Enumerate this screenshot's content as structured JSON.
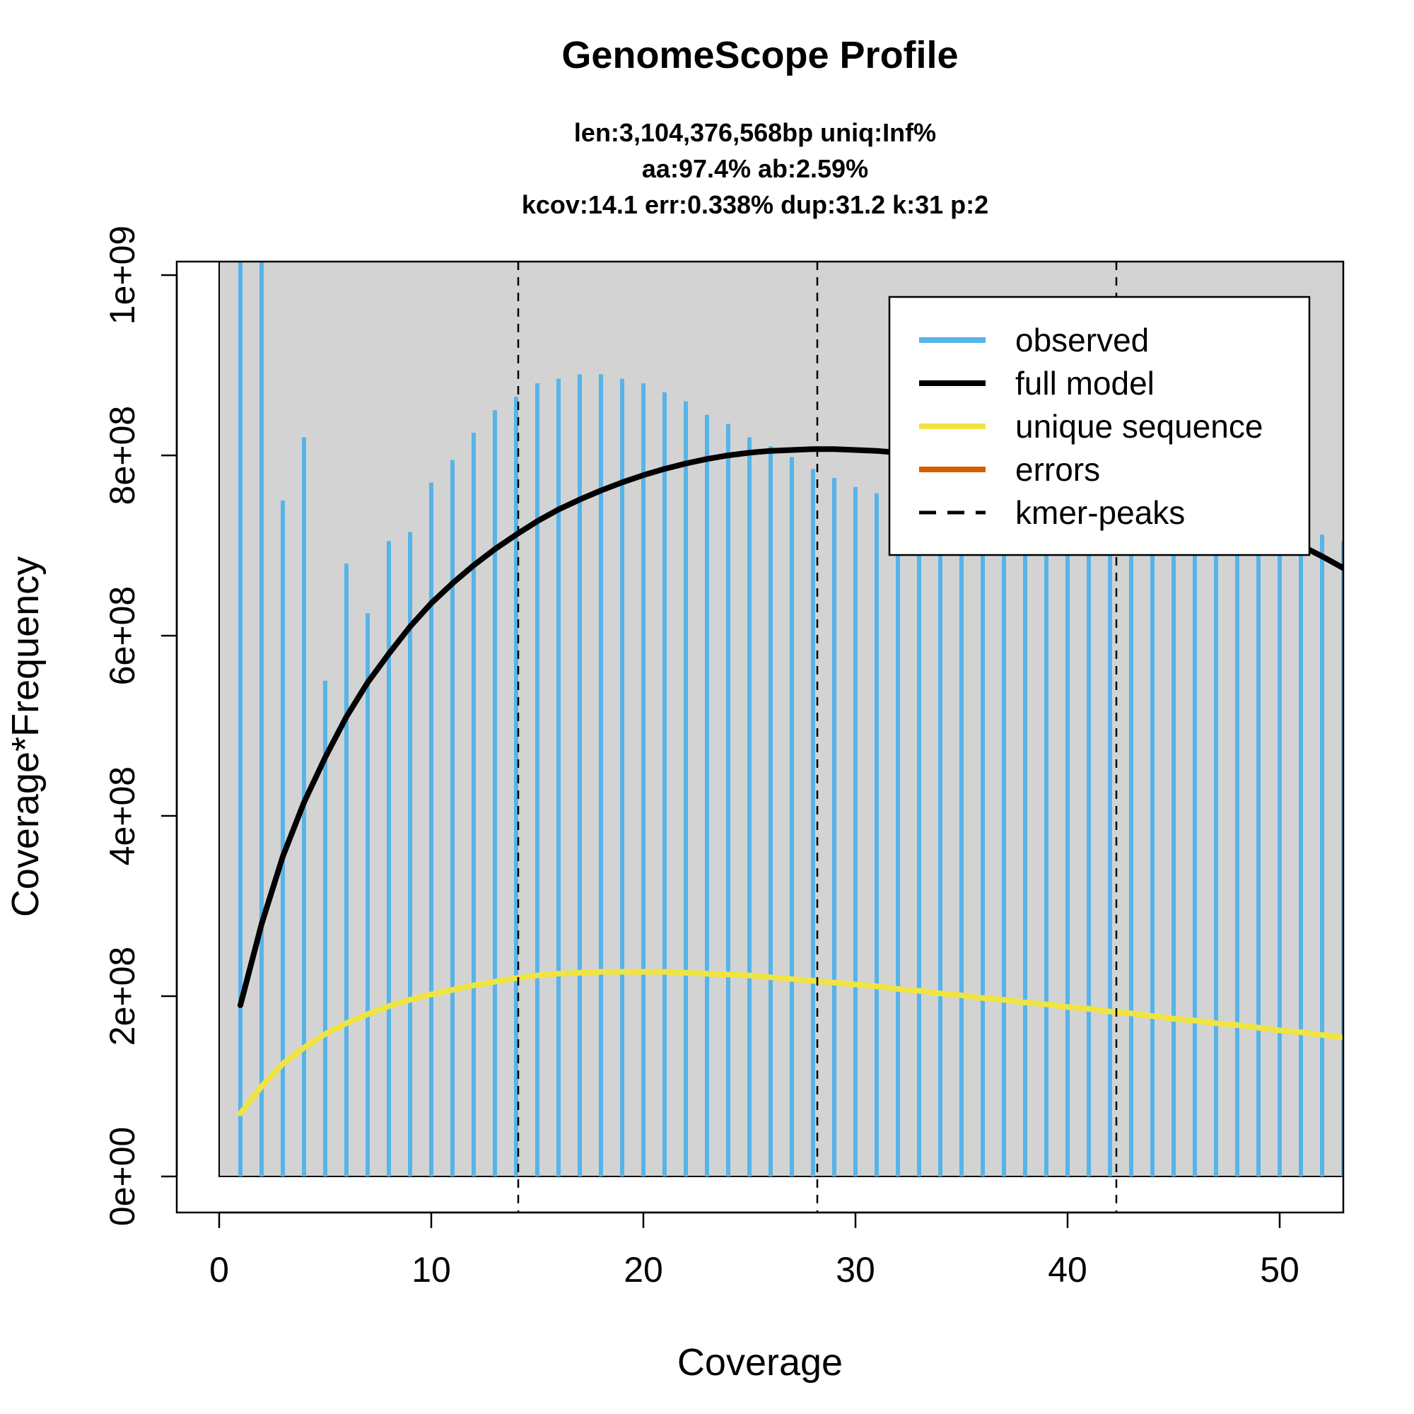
{
  "chart_data": {
    "type": "line",
    "title": "GenomeScope Profile",
    "subtitle_lines": [
      "len:3,104,376,568bp uniq:Inf%",
      "aa:97.4% ab:2.59%",
      "kcov:14.1 err:0.338%  dup:31.2  k:31 p:2"
    ],
    "xlabel": "Coverage",
    "ylabel": "Coverage*Frequency",
    "xlim": [
      -2,
      53
    ],
    "ylim": [
      -40000000,
      1015000000
    ],
    "xticks": [
      0,
      10,
      20,
      30,
      40,
      50
    ],
    "xtick_labels": [
      "0",
      "10",
      "20",
      "30",
      "40",
      "50"
    ],
    "yticks": [
      0,
      200000000,
      400000000,
      600000000,
      800000000,
      1000000000
    ],
    "ytick_labels": [
      "0e+00",
      "2e+08",
      "4e+08",
      "6e+08",
      "8e+08",
      "1e+09"
    ],
    "colors": {
      "observed": "#56B4E9",
      "full_model": "#000000",
      "unique_sequence": "#F0E442",
      "errors": "#D55E00",
      "kmer_peaks": "#000000",
      "background": "#D3D3D3"
    },
    "background_region": {
      "x_start": 0,
      "x_end": 53,
      "y_start": 0,
      "y_end": 1015000000
    },
    "series": [
      {
        "name": "observed",
        "kind": "histogram-lines",
        "x": [
          1,
          2,
          3,
          4,
          5,
          6,
          7,
          8,
          9,
          10,
          11,
          12,
          13,
          14,
          15,
          16,
          17,
          18,
          19,
          20,
          21,
          22,
          23,
          24,
          25,
          26,
          27,
          28,
          29,
          30,
          31,
          32,
          33,
          34,
          35,
          36,
          37,
          38,
          39,
          40,
          41,
          42,
          43,
          44,
          45,
          46,
          47,
          48,
          49,
          50,
          51,
          52,
          53
        ],
        "values": [
          1015000000,
          1015000000,
          750000000,
          820000000,
          550000000,
          680000000,
          625000000,
          705000000,
          715000000,
          770000000,
          795000000,
          825000000,
          850000000,
          865000000,
          880000000,
          885000000,
          890000000,
          890000000,
          885000000,
          880000000,
          870000000,
          860000000,
          845000000,
          835000000,
          820000000,
          810000000,
          798000000,
          785000000,
          775000000,
          765000000,
          758000000,
          750000000,
          745000000,
          740000000,
          735000000,
          732000000,
          730000000,
          728000000,
          726000000,
          725000000,
          724000000,
          723000000,
          722000000,
          721000000,
          720000000,
          719000000,
          718000000,
          717000000,
          716000000,
          715000000,
          714000000,
          712000000,
          705000000
        ]
      },
      {
        "name": "full model",
        "kind": "line",
        "x": [
          1,
          2,
          3,
          4,
          5,
          6,
          7,
          8,
          9,
          10,
          11,
          12,
          13,
          14,
          15,
          16,
          17,
          18,
          19,
          20,
          21,
          22,
          23,
          24,
          25,
          26,
          27,
          28,
          29,
          30,
          31,
          32,
          33,
          34,
          35,
          36,
          37,
          38,
          39,
          40,
          41,
          42,
          43,
          44,
          45,
          46,
          47,
          48,
          49,
          50,
          51,
          52,
          53
        ],
        "values": [
          190000000,
          280000000,
          355000000,
          415000000,
          465000000,
          510000000,
          548000000,
          580000000,
          610000000,
          636000000,
          658000000,
          678000000,
          696000000,
          712000000,
          727000000,
          740000000,
          751000000,
          761000000,
          770000000,
          778000000,
          785000000,
          791000000,
          796000000,
          800000000,
          803000000,
          805000000,
          806000000,
          807000000,
          807000000,
          806000000,
          805000000,
          803000000,
          801000000,
          798000000,
          795000000,
          792000000,
          788000000,
          784000000,
          780000000,
          775000000,
          770000000,
          765000000,
          760000000,
          754000000,
          748000000,
          741000000,
          734000000,
          726000000,
          718000000,
          709000000,
          700000000,
          688000000,
          675000000
        ]
      },
      {
        "name": "unique sequence",
        "kind": "line",
        "x": [
          1,
          2,
          3,
          4,
          5,
          6,
          7,
          8,
          9,
          10,
          11,
          12,
          13,
          14,
          15,
          16,
          17,
          18,
          19,
          20,
          21,
          22,
          23,
          24,
          25,
          26,
          27,
          28,
          29,
          30,
          31,
          32,
          33,
          34,
          35,
          36,
          37,
          38,
          39,
          40,
          41,
          42,
          43,
          44,
          45,
          46,
          47,
          48,
          49,
          50,
          51,
          52,
          53
        ],
        "values": [
          70000000,
          100000000,
          125000000,
          143000000,
          158000000,
          170000000,
          180000000,
          189000000,
          196000000,
          202000000,
          207000000,
          212000000,
          216000000,
          220000000,
          223000000,
          225000000,
          226000000,
          227000000,
          227000000,
          227000000,
          227000000,
          226000000,
          225000000,
          224000000,
          223000000,
          221000000,
          219000000,
          217000000,
          215000000,
          213000000,
          211000000,
          208000000,
          206000000,
          203000000,
          201000000,
          198000000,
          196000000,
          193000000,
          191000000,
          188000000,
          186000000,
          183000000,
          181000000,
          178000000,
          175000000,
          173000000,
          170000000,
          168000000,
          165000000,
          162000000,
          160000000,
          157000000,
          154000000
        ]
      },
      {
        "name": "errors",
        "kind": "line",
        "x": [],
        "values": []
      }
    ],
    "kmer_peaks": [
      14.1,
      28.2,
      42.3
    ],
    "legend": {
      "position": "top-right",
      "entries": [
        {
          "label": "observed",
          "color": "#56B4E9",
          "style": "solid"
        },
        {
          "label": "full model",
          "color": "#000000",
          "style": "solid"
        },
        {
          "label": "unique sequence",
          "color": "#F0E442",
          "style": "solid"
        },
        {
          "label": "errors",
          "color": "#D55E00",
          "style": "solid"
        },
        {
          "label": "kmer-peaks",
          "color": "#000000",
          "style": "dashed"
        }
      ]
    }
  }
}
